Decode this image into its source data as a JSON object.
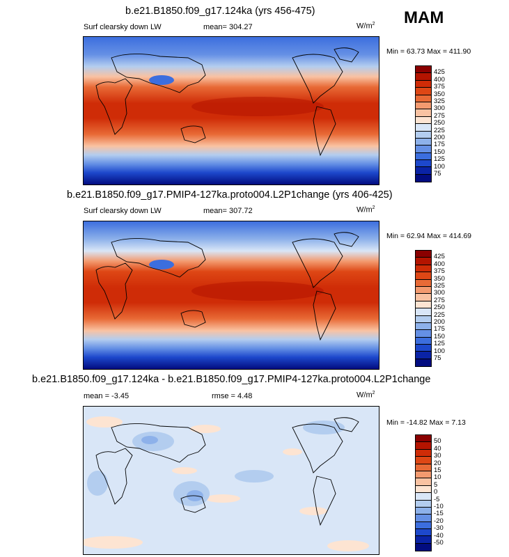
{
  "season": "MAM",
  "units_base": "W/m",
  "units_exp": "2",
  "chart_data": [
    {
      "type": "heatmap",
      "title": "b.e21.B1850.f09_g17.124ka (yrs 456-475)",
      "variable": "Surf clearsky down LW",
      "mean_label": "mean= 304.27",
      "min_max": "Min = 63.73 Max = 411.90",
      "colorbar_levels": [
        "425",
        "400",
        "375",
        "350",
        "325",
        "300",
        "275",
        "250",
        "225",
        "200",
        "175",
        "150",
        "125",
        "100",
        "75"
      ]
    },
    {
      "type": "heatmap",
      "title": "b.e21.B1850.f09_g17.PMIP4-127ka.proto004.L2P1change (yrs 406-425)",
      "variable": "Surf clearsky down LW",
      "mean_label": "mean= 307.72",
      "min_max": "Min = 62.94 Max = 414.69",
      "colorbar_levels": [
        "425",
        "400",
        "375",
        "350",
        "325",
        "300",
        "275",
        "250",
        "225",
        "200",
        "175",
        "150",
        "125",
        "100",
        "75"
      ]
    },
    {
      "type": "heatmap",
      "title": "b.e21.B1850.f09_g17.124ka - b.e21.B1850.f09_g17.PMIP4-127ka.proto004.L2P1change",
      "mean_label": "mean =  -3.45",
      "rmse_label": "rmse =   4.48",
      "min_max": "Min = -14.82 Max =   7.13",
      "colorbar_levels": [
        "50",
        "40",
        "30",
        "20",
        "15",
        "10",
        "5",
        "0",
        "-5",
        "-10",
        "-15",
        "-20",
        "-30",
        "-40",
        "-50"
      ]
    }
  ],
  "colors": {
    "abs_scale": [
      "#8a0000",
      "#b41400",
      "#cf2c07",
      "#de4715",
      "#e86a36",
      "#f39a6f",
      "#f9c2a2",
      "#fde4d2",
      "#d9e6f7",
      "#b3cdef",
      "#8db1ea",
      "#6590e5",
      "#3c6ede",
      "#1d48cc",
      "#0a23a6",
      "#020c80"
    ],
    "diff_scale": [
      "#8a0000",
      "#b41400",
      "#cf2c07",
      "#de4715",
      "#e86a36",
      "#f39a6f",
      "#f9c2a2",
      "#fde4d2",
      "#d9e6f7",
      "#b3cdef",
      "#8db1ea",
      "#6590e5",
      "#3c6ede",
      "#1d48cc",
      "#0a23a6",
      "#020c80"
    ]
  }
}
